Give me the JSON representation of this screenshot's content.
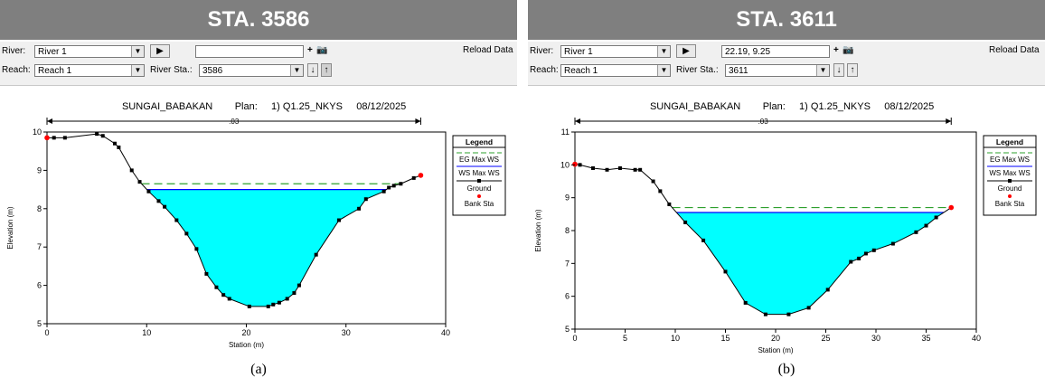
{
  "panels": [
    {
      "id": "a",
      "title": "STA. 3586",
      "toolbar": {
        "river_label": "River:",
        "river_value": "River 1",
        "reach_label": "Reach:",
        "reach_value": "Reach 1",
        "river_sta_label": "River Sta.:",
        "river_sta_value": "3586",
        "coord_value": "",
        "reload_label": "Reload Data"
      },
      "header": {
        "project": "SUNGAI_BABAKAN",
        "plan_label": "Plan:",
        "plan_value": "1) Q1.25_NKYS",
        "date": "08/12/2025"
      },
      "caption": "(a)"
    },
    {
      "id": "b",
      "title": "STA. 3611",
      "toolbar": {
        "river_label": "River:",
        "river_value": "River 1",
        "reach_label": "Reach:",
        "reach_value": "Reach 1",
        "river_sta_label": "River Sta.:",
        "river_sta_value": "3611",
        "coord_value": "22.19, 9.25",
        "reload_label": "Reload Data"
      },
      "header": {
        "project": "SUNGAI_BABAKAN",
        "plan_label": "Plan:",
        "plan_value": "1) Q1.25_NKYS",
        "date": "08/12/2025"
      },
      "caption": "(b)"
    }
  ],
  "colors": {
    "water": "#00ffff",
    "eg_line": "#2ea02e",
    "ws_line": "#0000ff",
    "ground": "#000000",
    "bank": "#ff0000",
    "title_bg": "#7f7f7f"
  },
  "chart_data": [
    {
      "type": "line",
      "xlabel": "Station (m)",
      "ylabel": "Elevation (m)",
      "xlim": [
        0,
        40
      ],
      "ylim": [
        5,
        10
      ],
      "xticks": [
        0,
        10,
        20,
        30,
        40
      ],
      "yticks": [
        5,
        6,
        7,
        8,
        9,
        10
      ],
      "manning_label": ".03",
      "manning_extent": [
        0,
        37.5
      ],
      "legend_title": "Legend",
      "legend_position": "right",
      "legend": [
        "EG Max WS",
        "WS Max WS",
        "Ground",
        "Bank Sta"
      ],
      "eg_max_ws": 8.65,
      "ws_max_ws": 8.5,
      "ground": {
        "x": [
          0,
          0.7,
          1.8,
          5,
          5.6,
          6.8,
          7.2,
          8.5,
          9.3,
          10.2,
          11.2,
          11.8,
          13,
          14,
          15,
          16,
          17,
          17.7,
          18.3,
          20.3,
          22.2,
          22.7,
          23.3,
          24.1,
          24.8,
          25.3,
          27,
          29.3,
          31.3,
          32,
          33.8,
          34.3,
          34.8,
          35.5,
          36.8,
          37.5
        ],
        "y": [
          9.85,
          9.85,
          9.85,
          9.95,
          9.9,
          9.7,
          9.6,
          9.0,
          8.7,
          8.45,
          8.2,
          8.05,
          7.7,
          7.35,
          6.95,
          6.3,
          5.95,
          5.75,
          5.65,
          5.45,
          5.45,
          5.5,
          5.55,
          5.65,
          5.8,
          6.0,
          6.8,
          7.7,
          8.0,
          8.25,
          8.45,
          8.55,
          8.6,
          8.65,
          8.8,
          8.87
        ]
      },
      "bank_stations": [
        {
          "x": 0,
          "y": 9.85
        },
        {
          "x": 37.5,
          "y": 8.87
        }
      ]
    },
    {
      "type": "line",
      "xlabel": "Station (m)",
      "ylabel": "Elevation (m)",
      "xlim": [
        0,
        40
      ],
      "ylim": [
        5,
        11
      ],
      "xticks": [
        0,
        5,
        10,
        15,
        20,
        25,
        30,
        35,
        40
      ],
      "yticks": [
        5,
        6,
        7,
        8,
        9,
        10,
        11
      ],
      "manning_label": ".03",
      "manning_extent": [
        0,
        37.5
      ],
      "legend_title": "Legend",
      "legend_position": "right",
      "legend": [
        "EG Max WS",
        "WS Max WS",
        "Ground",
        "Bank Sta"
      ],
      "eg_max_ws": 8.7,
      "ws_max_ws": 8.55,
      "ground": {
        "x": [
          0,
          0.5,
          1.8,
          3.2,
          4.5,
          6,
          6.5,
          7.8,
          8.5,
          9.4,
          11,
          12.8,
          15,
          17,
          19,
          21.3,
          23.3,
          25.2,
          27.5,
          28.3,
          29,
          29.8,
          31.7,
          34,
          35,
          36,
          37.5
        ],
        "y": [
          10.02,
          10.0,
          9.9,
          9.85,
          9.9,
          9.85,
          9.85,
          9.5,
          9.2,
          8.8,
          8.25,
          7.7,
          6.75,
          5.8,
          5.45,
          5.45,
          5.65,
          6.2,
          7.05,
          7.15,
          7.3,
          7.4,
          7.6,
          7.95,
          8.15,
          8.4,
          8.7
        ]
      },
      "bank_stations": [
        {
          "x": 0,
          "y": 10.02
        },
        {
          "x": 37.5,
          "y": 8.7
        }
      ]
    }
  ]
}
